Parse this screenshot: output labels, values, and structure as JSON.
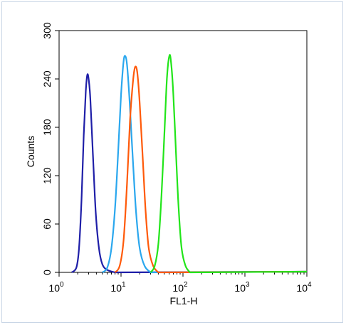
{
  "chart_data": {
    "type": "line",
    "title": "",
    "xlabel": "FL1-H",
    "ylabel": "Counts",
    "xscale": "log",
    "xlim": [
      1,
      10000
    ],
    "ylim": [
      0,
      300
    ],
    "x_ticks": [
      {
        "base": "10",
        "exp": "0"
      },
      {
        "base": "10",
        "exp": "1"
      },
      {
        "base": "10",
        "exp": "2"
      },
      {
        "base": "10",
        "exp": "3"
      },
      {
        "base": "10",
        "exp": "4"
      }
    ],
    "y_ticks": [
      "0",
      "60",
      "120",
      "180",
      "240",
      "300"
    ],
    "grid": false,
    "legend": "none",
    "series": [
      {
        "color": "#1f1fa8",
        "points": [
          [
            1.6,
            0
          ],
          [
            1.9,
            6
          ],
          [
            2.1,
            30
          ],
          [
            2.3,
            90
          ],
          [
            2.5,
            170
          ],
          [
            2.7,
            225
          ],
          [
            2.85,
            245
          ],
          [
            3.0,
            240
          ],
          [
            3.2,
            215
          ],
          [
            3.5,
            150
          ],
          [
            3.9,
            75
          ],
          [
            4.4,
            30
          ],
          [
            5.0,
            10
          ],
          [
            6.0,
            3
          ],
          [
            8.0,
            0
          ]
        ]
      },
      {
        "color": "#2aa7ee",
        "points": [
          [
            5.0,
            0
          ],
          [
            6.0,
            6
          ],
          [
            7.0,
            30
          ],
          [
            8.0,
            80
          ],
          [
            9.0,
            150
          ],
          [
            10.0,
            220
          ],
          [
            11.0,
            262
          ],
          [
            11.8,
            268
          ],
          [
            12.6,
            255
          ],
          [
            13.8,
            210
          ],
          [
            15.5,
            140
          ],
          [
            17.5,
            75
          ],
          [
            20.0,
            30
          ],
          [
            24.0,
            8
          ],
          [
            30.0,
            0
          ]
        ]
      },
      {
        "color": "#ff5a0a",
        "points": [
          [
            8.0,
            0
          ],
          [
            9.5,
            8
          ],
          [
            11.0,
            40
          ],
          [
            12.5,
            110
          ],
          [
            14.0,
            190
          ],
          [
            15.5,
            235
          ],
          [
            16.5,
            252
          ],
          [
            17.5,
            255
          ],
          [
            18.5,
            245
          ],
          [
            20.0,
            210
          ],
          [
            22.5,
            140
          ],
          [
            25.0,
            75
          ],
          [
            28.0,
            30
          ],
          [
            33.0,
            8
          ],
          [
            40.0,
            0
          ]
        ]
      },
      {
        "color": "#22e51a",
        "points": [
          [
            30.0,
            0
          ],
          [
            35.0,
            8
          ],
          [
            40.0,
            35
          ],
          [
            45.0,
            95
          ],
          [
            50.0,
            170
          ],
          [
            55.0,
            240
          ],
          [
            60.0,
            268
          ],
          [
            64.0,
            262
          ],
          [
            70.0,
            220
          ],
          [
            77.0,
            150
          ],
          [
            85.0,
            80
          ],
          [
            95.0,
            30
          ],
          [
            110.0,
            8
          ],
          [
            130.0,
            0
          ]
        ]
      }
    ]
  }
}
